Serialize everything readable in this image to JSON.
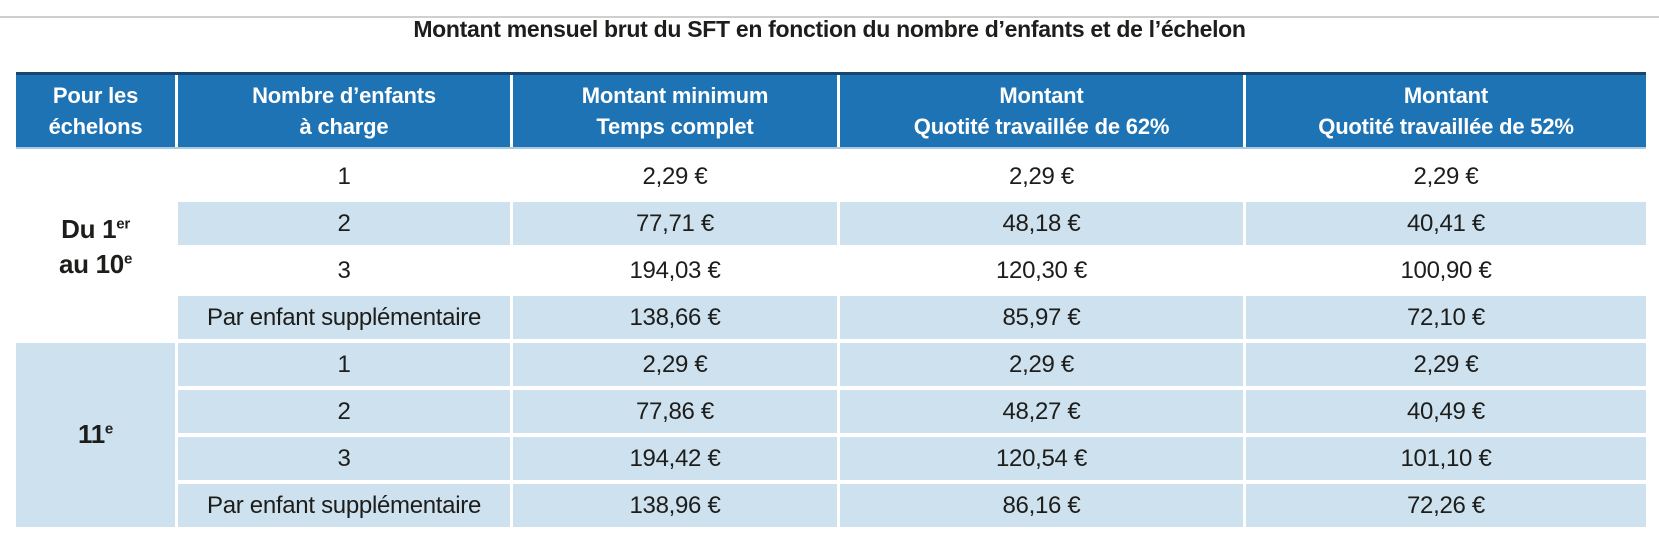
{
  "page": {
    "title": "Montant mensuel brut du SFT en fonction du nombre d’enfants et de l’échelon"
  },
  "colors": {
    "header_blue": "#1e73b4",
    "row_light_blue": "#cde1ee",
    "rule_dark_navy": "#17476e",
    "rule_light_blue": "#a9cbe2",
    "text": "#1d1d1b"
  },
  "table": {
    "headers": [
      {
        "line1": "Pour les",
        "line2": "échelons"
      },
      {
        "line1": "Nombre d’enfants",
        "line2": "à charge"
      },
      {
        "line1": "Montant minimum",
        "line2": "Temps complet"
      },
      {
        "line1": "Montant",
        "line2": "Quotité travaillée de 62%"
      },
      {
        "line1": "Montant",
        "line2": "Quotité travaillée de 52%"
      }
    ],
    "groups": [
      {
        "echelon": {
          "lines": [
            {
              "text": "Du 1",
              "sup": "er"
            },
            {
              "text": "au 10",
              "sup": "e"
            }
          ]
        },
        "rows": [
          {
            "children": "1",
            "min": "2,29 €",
            "q62": "2,29 €",
            "q52": "2,29 €"
          },
          {
            "children": "2",
            "min": "77,71 €",
            "q62": "48,18 €",
            "q52": "40,41 €"
          },
          {
            "children": "3",
            "min": "194,03 €",
            "q62": "120,30 €",
            "q52": "100,90 €"
          },
          {
            "children": "Par enfant supplémentaire",
            "min": "138,66 €",
            "q62": "85,97 €",
            "q52": "72,10 €"
          }
        ]
      },
      {
        "echelon": {
          "lines": [
            {
              "text": "11",
              "sup": "e"
            }
          ]
        },
        "rows": [
          {
            "children": "1",
            "min": "2,29 €",
            "q62": "2,29 €",
            "q52": "2,29 €"
          },
          {
            "children": "2",
            "min": "77,86 €",
            "q62": "48,27 €",
            "q52": "40,49 €"
          },
          {
            "children": "3",
            "min": "194,42 €",
            "q62": "120,54 €",
            "q52": "101,10 €"
          },
          {
            "children": "Par enfant supplémentaire",
            "min": "138,96 €",
            "q62": "86,16 €",
            "q52": "72,26 €"
          }
        ]
      }
    ]
  }
}
